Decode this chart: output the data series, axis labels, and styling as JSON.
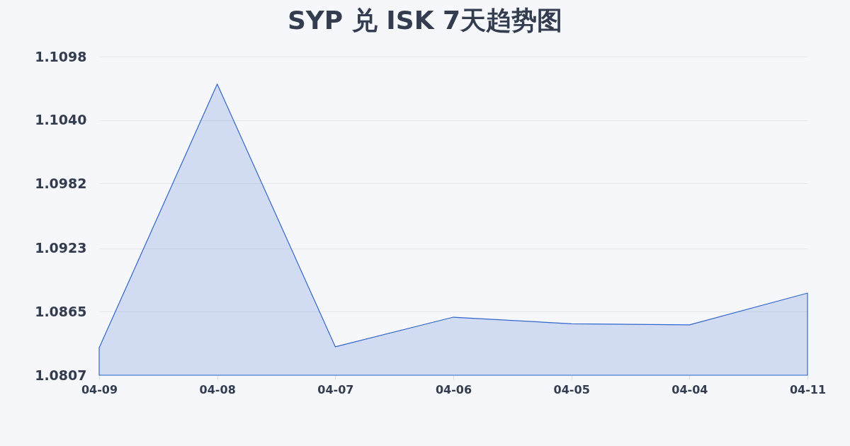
{
  "chart_data": {
    "type": "area",
    "title": "SYP 兑 ISK 7天趋势图",
    "categories": [
      "04-09",
      "04-08",
      "04-07",
      "04-06",
      "04-05",
      "04-04",
      "04-11"
    ],
    "series": [
      {
        "color": "#3366cc",
        "values": [
          1.0832,
          1.1073,
          1.0833,
          1.086,
          1.0854,
          1.0853,
          1.0882
        ]
      }
    ],
    "ylim": [
      1.0807,
      1.1098
    ],
    "yticks": [
      1.0807,
      1.0865,
      1.0923,
      1.0982,
      {
        "value": 1.104,
        "label": "1.1040"
      },
      1.1098
    ],
    "grid": "y"
  }
}
